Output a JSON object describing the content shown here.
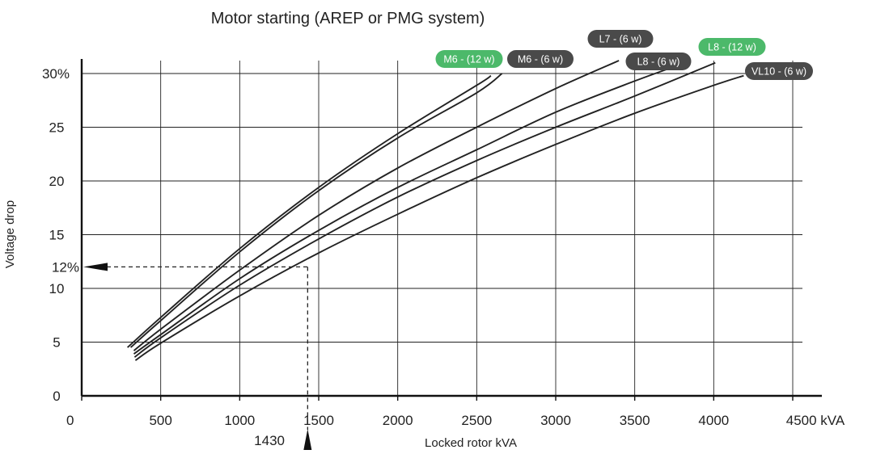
{
  "chart_data": {
    "type": "line",
    "title": "Motor starting (AREP or PMG system)",
    "xlabel": "Locked rotor kVA",
    "ylabel": "Voltage drop",
    "xlim": [
      0,
      4500
    ],
    "ylim": [
      0,
      30
    ],
    "grid": true,
    "x_ticks": [
      {
        "value": 0,
        "label": "0"
      },
      {
        "value": 500,
        "label": "500"
      },
      {
        "value": 1000,
        "label": "1000"
      },
      {
        "value": 1500,
        "label": "1500"
      },
      {
        "value": 2000,
        "label": "2000"
      },
      {
        "value": 2500,
        "label": "2500"
      },
      {
        "value": 3000,
        "label": "3000"
      },
      {
        "value": 3500,
        "label": "3500"
      },
      {
        "value": 4000,
        "label": "4000"
      },
      {
        "value": 4500,
        "label": "4500 kVA"
      }
    ],
    "y_ticks": [
      {
        "value": 0,
        "label": "0"
      },
      {
        "value": 5,
        "label": "5"
      },
      {
        "value": 10,
        "label": "10"
      },
      {
        "value": 15,
        "label": "15"
      },
      {
        "value": 20,
        "label": "20"
      },
      {
        "value": 25,
        "label": "25"
      },
      {
        "value": 30,
        "label": "30%"
      }
    ],
    "series": [
      {
        "name": "M6 - (12 w)",
        "color": "#222222",
        "label_color": "#4cb96a",
        "x": [
          290,
          500,
          1000,
          1500,
          2000,
          2500,
          2590
        ],
        "y": [
          4.5,
          7.3,
          13.7,
          19.4,
          24.4,
          28.9,
          29.8
        ]
      },
      {
        "name": "M6 - (6 w)",
        "color": "#222222",
        "label_color": "#4a4a4a",
        "x": [
          310,
          500,
          1000,
          1500,
          2000,
          2500,
          2660
        ],
        "y": [
          4.5,
          7.0,
          13.4,
          19.1,
          24.0,
          28.2,
          30.0
        ]
      },
      {
        "name": "L7 - (6 w)",
        "color": "#222222",
        "label_color": "#4a4a4a",
        "x": [
          330,
          500,
          1000,
          1500,
          2000,
          2500,
          3000,
          3400
        ],
        "y": [
          4.2,
          6.2,
          11.7,
          16.8,
          21.2,
          25.0,
          28.6,
          31.2
        ]
      },
      {
        "name": "L8 - (6 w)",
        "color": "#222222",
        "label_color": "#4a4a4a",
        "x": [
          330,
          500,
          1000,
          1500,
          2000,
          2500,
          3000,
          3500,
          3820
        ],
        "y": [
          3.9,
          5.7,
          10.9,
          15.4,
          19.4,
          22.9,
          26.4,
          29.3,
          31.0
        ]
      },
      {
        "name": "L8 - (12 w)",
        "color": "#222222",
        "label_color": "#4cb96a",
        "x": [
          335,
          500,
          1000,
          1500,
          2000,
          2500,
          3000,
          3500,
          4010
        ],
        "y": [
          3.6,
          5.4,
          10.3,
          14.6,
          18.5,
          21.9,
          25.0,
          27.9,
          31.0
        ]
      },
      {
        "name": "VL10 - (6 w)",
        "color": "#222222",
        "label_color": "#4a4a4a",
        "x": [
          340,
          500,
          1000,
          1500,
          2000,
          2500,
          3000,
          3500,
          4000,
          4190
        ],
        "y": [
          3.3,
          4.9,
          9.3,
          13.3,
          16.9,
          20.3,
          23.4,
          26.3,
          28.9,
          29.8
        ]
      }
    ],
    "annotations": [
      {
        "text": "12%",
        "y": 12,
        "x_marker": 1430,
        "marker_label": "1430"
      }
    ]
  }
}
